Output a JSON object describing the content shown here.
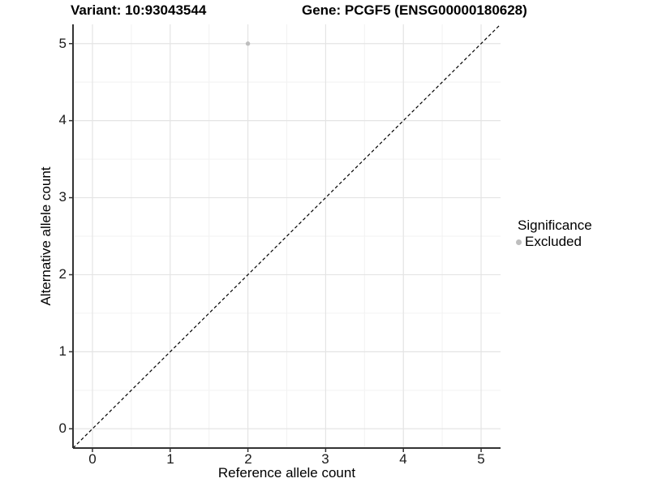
{
  "page": {
    "background": "#ffffff"
  },
  "titles": {
    "variant": "Variant: 10:93043544",
    "gene": "Gene: PCGF5 (ENSG00000180628)"
  },
  "axes": {
    "x_label": "Reference allele count",
    "y_label": "Alternative allele count",
    "x_tick_labels": [
      "0",
      "1",
      "2",
      "3",
      "4",
      "5"
    ],
    "y_tick_labels": [
      "0",
      "1",
      "2",
      "3",
      "4",
      "5"
    ]
  },
  "legend": {
    "title": "Significance",
    "items": [
      {
        "label": "Excluded",
        "color": "#bebebe"
      }
    ]
  },
  "chart_data": {
    "type": "scatter",
    "title_left": "Variant: 10:93043544",
    "title_right": "Gene: PCGF5 (ENSG00000180628)",
    "xlabel": "Reference allele count",
    "ylabel": "Alternative allele count",
    "xlim": [
      -0.25,
      5.25
    ],
    "ylim": [
      -0.25,
      5.25
    ],
    "x_ticks": [
      0,
      1,
      2,
      3,
      4,
      5
    ],
    "y_ticks": [
      0,
      1,
      2,
      3,
      4,
      5
    ],
    "grid": "on",
    "legend_position": "right",
    "series": [
      {
        "name": "Excluded",
        "color": "#bebebe",
        "point_radius": 2.7,
        "points": [
          {
            "x": 2,
            "y": 5
          }
        ]
      }
    ],
    "reference_line": {
      "type": "identity y=x",
      "style": "dashed",
      "color": "#000000",
      "x1": -0.25,
      "y1": -0.25,
      "x2": 5.25,
      "y2": 5.25
    }
  },
  "colors": {
    "grid_major": "#e4e4e4",
    "grid_minor": "#f2f2f2",
    "axis_line": "#333333",
    "point": "#bebebe",
    "text": "#000000"
  }
}
